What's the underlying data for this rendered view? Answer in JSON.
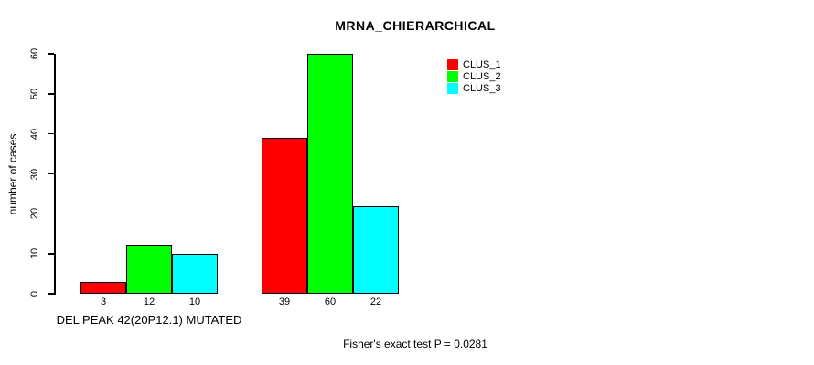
{
  "chart_data": {
    "type": "bar",
    "title": "MRNA_CHIERARCHICAL",
    "ylabel": "number of cases",
    "xlabel": "DEL PEAK 42(20P12.1) MUTATED",
    "categories": [
      "DEL PEAK 42(20P12.1) MUTATED",
      ""
    ],
    "series": [
      {
        "name": "CLUS_1",
        "color": "#ff0000",
        "values": [
          3,
          39
        ]
      },
      {
        "name": "CLUS_2",
        "color": "#00ff00",
        "values": [
          12,
          60
        ]
      },
      {
        "name": "CLUS_3",
        "color": "#00ffff",
        "values": [
          10,
          22
        ]
      }
    ],
    "bar_value_labels": [
      [
        "3",
        "12",
        "10"
      ],
      [
        "39",
        "60",
        "22"
      ]
    ],
    "ylim": [
      0,
      60
    ],
    "yticks": [
      0,
      10,
      20,
      30,
      40,
      50,
      60
    ],
    "grid": false,
    "legend_position": "top-right",
    "annotation": "Fisher's exact test P = 0.0281",
    "axis_color": "#000000",
    "bar_border_color": "#000000"
  }
}
